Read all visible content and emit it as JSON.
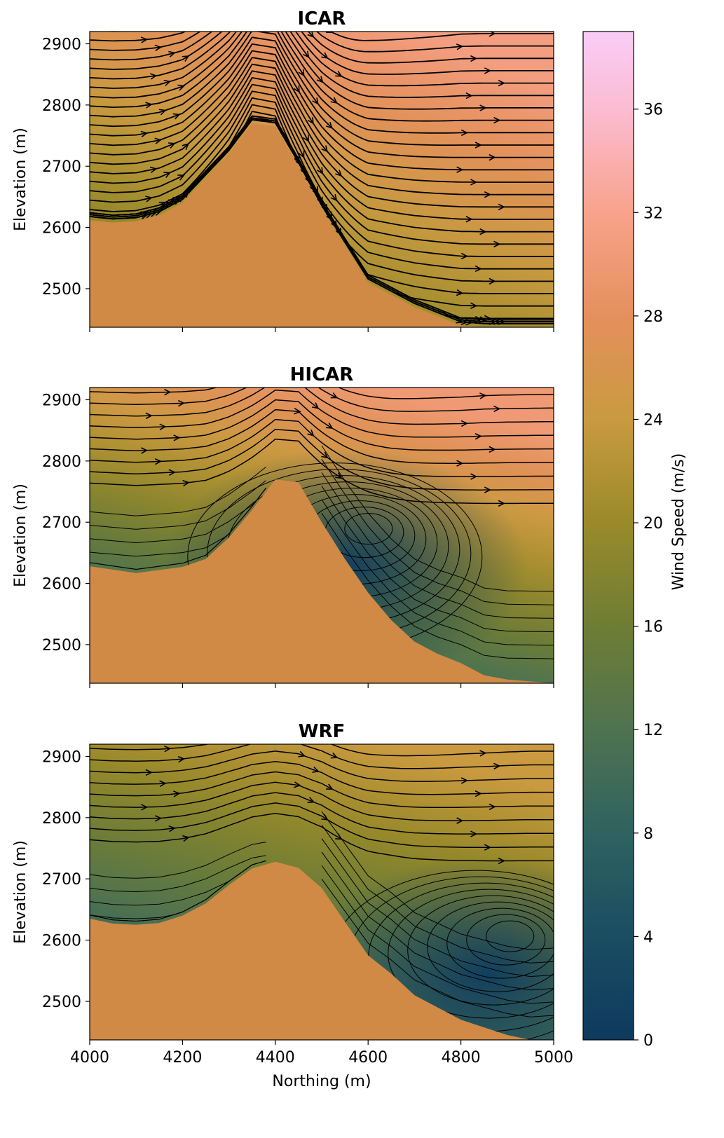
{
  "chart_data": [
    {
      "type": "heatmap",
      "title": "ICAR",
      "xlabel": "",
      "ylabel": "Elevation (m)",
      "xlim": [
        4000,
        5000
      ],
      "ylim": [
        2437,
        2920
      ],
      "xticks": [
        4000,
        4200,
        4400,
        4600,
        4800,
        5000
      ],
      "yticks": [
        2500,
        2600,
        2700,
        2800,
        2900
      ],
      "terrain": {
        "x": [
          4000,
          4050,
          4100,
          4150,
          4200,
          4250,
          4300,
          4350,
          4400,
          4450,
          4500,
          4550,
          4600,
          4650,
          4700,
          4800,
          4850,
          5000
        ],
        "y": [
          2612,
          2608,
          2610,
          2620,
          2640,
          2680,
          2720,
          2770,
          2765,
          2700,
          2630,
          2570,
          2510,
          2490,
          2470,
          2440,
          2437,
          2437
        ]
      },
      "wind_field": {
        "low": 16,
        "high": 31,
        "description_vortex": false
      }
    },
    {
      "type": "heatmap",
      "title": "HICAR",
      "xlabel": "",
      "ylabel": "Elevation (m)",
      "xlim": [
        4000,
        5000
      ],
      "ylim": [
        2437,
        2920
      ],
      "xticks": [
        4000,
        4200,
        4400,
        4600,
        4800,
        5000
      ],
      "yticks": [
        2500,
        2600,
        2700,
        2800,
        2900
      ],
      "terrain": {
        "x": [
          4000,
          4100,
          4200,
          4250,
          4300,
          4350,
          4400,
          4450,
          4500,
          4550,
          4600,
          4650,
          4700,
          4750,
          4800,
          4850,
          4900,
          5000
        ],
        "y": [
          2628,
          2617,
          2627,
          2640,
          2675,
          2720,
          2770,
          2765,
          2700,
          2640,
          2585,
          2540,
          2505,
          2485,
          2470,
          2450,
          2443,
          2437
        ]
      },
      "wind_field": {
        "low": 3,
        "high": 30
      },
      "vortex": {
        "x": 4610,
        "y": 2695
      }
    },
    {
      "type": "heatmap",
      "title": "WRF",
      "xlabel": "Northing (m)",
      "ylabel": "Elevation (m)",
      "xlim": [
        4000,
        5000
      ],
      "ylim": [
        2437,
        2920
      ],
      "xticks": [
        4000,
        4200,
        4400,
        4600,
        4800,
        5000
      ],
      "yticks": [
        2500,
        2600,
        2700,
        2800,
        2900
      ],
      "terrain": {
        "x": [
          4000,
          4050,
          4100,
          4150,
          4200,
          4250,
          4300,
          4350,
          4400,
          4450,
          4500,
          4550,
          4600,
          4650,
          4700,
          4750,
          4800,
          4900,
          4950,
          5000
        ],
        "y": [
          2635,
          2627,
          2625,
          2628,
          2640,
          2660,
          2690,
          2717,
          2728,
          2718,
          2685,
          2630,
          2575,
          2545,
          2510,
          2490,
          2470,
          2445,
          2437,
          2437
        ]
      },
      "wind_field": {
        "low": 3,
        "high": 24
      },
      "vortex": {
        "x": 4915,
        "y": 2612
      }
    }
  ],
  "colorbar": {
    "label": "Wind Speed (m/s)",
    "range": [
      0,
      39
    ],
    "ticks": [
      0,
      4,
      8,
      12,
      16,
      20,
      24,
      28,
      32,
      36
    ],
    "stops": [
      [
        0,
        "#0e3a5e"
      ],
      [
        4,
        "#1a4d62"
      ],
      [
        8,
        "#2f6260"
      ],
      [
        12,
        "#4f7350"
      ],
      [
        16,
        "#6e7d35"
      ],
      [
        20,
        "#9a8a2a"
      ],
      [
        24,
        "#c99a40"
      ],
      [
        28,
        "#e5905c"
      ],
      [
        32,
        "#f8a38c"
      ],
      [
        36,
        "#fbbcd2"
      ],
      [
        39,
        "#f9ccf7"
      ]
    ]
  },
  "terrain_color": "#d08a45"
}
